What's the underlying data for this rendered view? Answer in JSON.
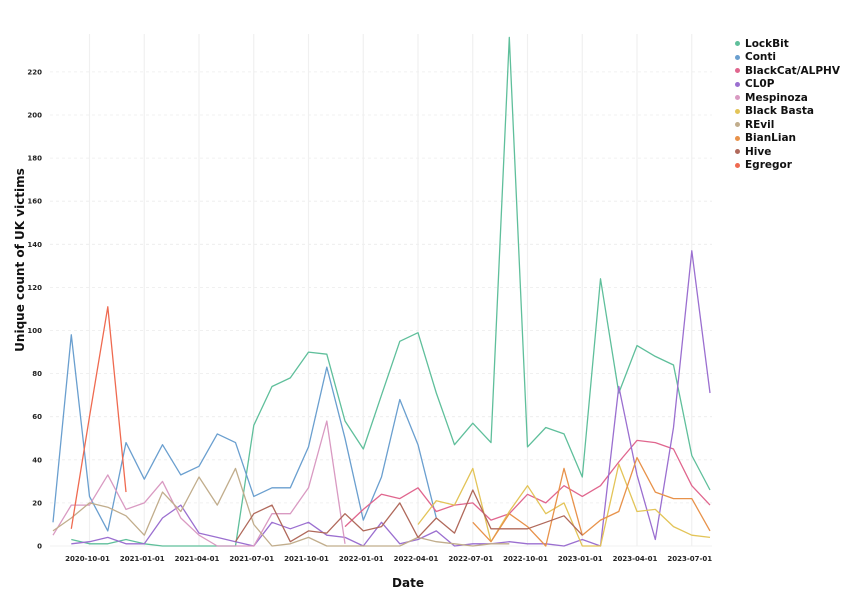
{
  "chart_data": {
    "type": "line",
    "title": "",
    "xlabel": "Date",
    "ylabel": "Unique count of UK victims",
    "ylim": [
      0,
      236
    ],
    "yticks": [
      0,
      20,
      40,
      60,
      80,
      100,
      120,
      140,
      160,
      180,
      200,
      220
    ],
    "xticks": [
      "2020-10-01",
      "2021-01-01",
      "2021-04-01",
      "2021-07-01",
      "2021-10-01",
      "2022-01-01",
      "2022-04-01",
      "2022-07-01",
      "2022-10-01",
      "2023-01-01",
      "2023-04-01",
      "2023-07-01"
    ],
    "grid": true,
    "legend_position": "right",
    "x": [
      "2020-08",
      "2020-09",
      "2020-10",
      "2020-11",
      "2020-12",
      "2021-01",
      "2021-02",
      "2021-03",
      "2021-04",
      "2021-05",
      "2021-06",
      "2021-07",
      "2021-08",
      "2021-09",
      "2021-10",
      "2021-11",
      "2021-12",
      "2022-01",
      "2022-02",
      "2022-03",
      "2022-04",
      "2022-05",
      "2022-06",
      "2022-07",
      "2022-08",
      "2022-09",
      "2022-10",
      "2022-11",
      "2022-12",
      "2023-01",
      "2023-02",
      "2023-03",
      "2023-04",
      "2023-05",
      "2023-06",
      "2023-07",
      "2023-08"
    ],
    "series": [
      {
        "name": "LockBit",
        "color": "#5fbf9b",
        "values": [
          null,
          3,
          1,
          1,
          3,
          1,
          0,
          0,
          0,
          0,
          0,
          56,
          74,
          78,
          90,
          89,
          58,
          45,
          70,
          95,
          99,
          71,
          47,
          57,
          48,
          236,
          46,
          55,
          52,
          32,
          124,
          71,
          93,
          88,
          84,
          42,
          26
        ]
      },
      {
        "name": "Conti",
        "color": "#6a9fcf",
        "values": [
          11,
          98,
          23,
          7,
          48,
          31,
          47,
          33,
          37,
          52,
          48,
          23,
          27,
          27,
          46,
          83,
          50,
          12,
          32,
          68,
          47,
          13,
          null,
          null,
          null,
          null,
          null,
          null,
          null,
          null,
          null,
          null,
          null,
          null,
          null,
          null,
          null
        ]
      },
      {
        "name": "BlackCat/ALPHV",
        "color": "#e0668e",
        "values": [
          null,
          null,
          null,
          null,
          null,
          null,
          null,
          null,
          null,
          null,
          null,
          null,
          null,
          null,
          null,
          null,
          9,
          17,
          24,
          22,
          27,
          16,
          19,
          20,
          12,
          15,
          24,
          20,
          28,
          23,
          28,
          39,
          49,
          48,
          45,
          28,
          19
        ]
      },
      {
        "name": "CL0P",
        "color": "#9b6fd0",
        "values": [
          null,
          1,
          2,
          4,
          1,
          1,
          13,
          19,
          6,
          4,
          2,
          0,
          11,
          8,
          11,
          5,
          4,
          0,
          11,
          1,
          3,
          7,
          0,
          1,
          1,
          2,
          1,
          1,
          0,
          3,
          0,
          74,
          33,
          3,
          55,
          137,
          71
        ]
      },
      {
        "name": "Mespinoza",
        "color": "#d99ac2",
        "values": [
          5,
          19,
          19,
          33,
          17,
          20,
          30,
          13,
          5,
          0,
          0,
          0,
          15,
          15,
          27,
          58,
          1,
          null,
          null,
          null,
          null,
          null,
          null,
          null,
          null,
          null,
          null,
          null,
          null,
          null,
          null,
          null,
          null,
          null,
          null,
          null,
          null
        ]
      },
      {
        "name": "Black Basta",
        "color": "#e3c458",
        "values": [
          null,
          null,
          null,
          null,
          null,
          null,
          null,
          null,
          null,
          null,
          null,
          null,
          null,
          null,
          null,
          null,
          null,
          null,
          null,
          null,
          10,
          21,
          19,
          36,
          2,
          16,
          28,
          15,
          20,
          0,
          0,
          38,
          16,
          17,
          9,
          5,
          4
        ]
      },
      {
        "name": "REvil",
        "color": "#c1ad8c",
        "values": [
          7,
          13,
          20,
          18,
          14,
          5,
          25,
          16,
          32,
          19,
          36,
          10,
          0,
          1,
          4,
          0,
          0,
          0,
          0,
          0,
          4,
          2,
          1,
          0,
          1,
          1,
          null,
          null,
          null,
          null,
          null,
          null,
          null,
          null,
          null,
          null,
          null
        ]
      },
      {
        "name": "BianLian",
        "color": "#e8924a",
        "values": [
          null,
          null,
          null,
          null,
          null,
          null,
          null,
          null,
          null,
          null,
          null,
          null,
          null,
          null,
          null,
          null,
          null,
          null,
          null,
          null,
          null,
          null,
          null,
          11,
          2,
          15,
          9,
          0,
          36,
          5,
          12,
          16,
          41,
          25,
          22,
          22,
          7
        ]
      },
      {
        "name": "Hive",
        "color": "#b0695b",
        "values": [
          null,
          null,
          null,
          null,
          null,
          null,
          null,
          null,
          null,
          null,
          2,
          15,
          19,
          2,
          7,
          6,
          15,
          7,
          9,
          20,
          4,
          13,
          6,
          26,
          8,
          8,
          8,
          11,
          14,
          5,
          null,
          null,
          null,
          null,
          null,
          null,
          null
        ]
      },
      {
        "name": "Egregor",
        "color": "#ef6a50",
        "values": [
          null,
          8,
          60,
          111,
          25,
          null,
          null,
          null,
          null,
          null,
          null,
          null,
          null,
          null,
          null,
          null,
          null,
          null,
          null,
          null,
          null,
          null,
          null,
          null,
          null,
          null,
          null,
          null,
          null,
          null,
          null,
          null,
          null,
          null,
          null,
          null,
          null
        ]
      }
    ]
  }
}
